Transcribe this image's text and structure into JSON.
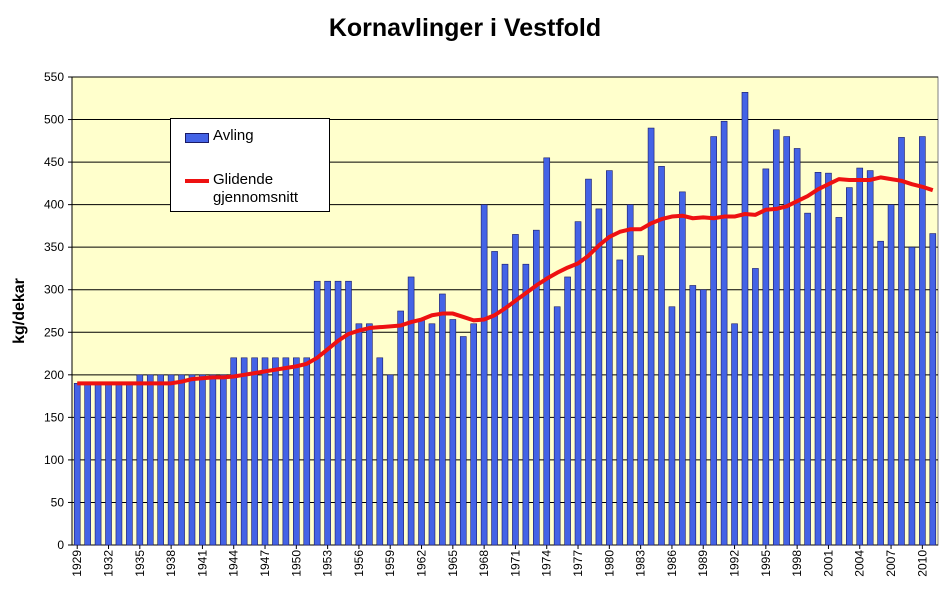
{
  "chart_data": {
    "type": "bar",
    "title": "Kornavlinger i Vestfold",
    "y_label": "kg/dekar",
    "categories": [
      "1929",
      null,
      null,
      "1932",
      null,
      null,
      "1935",
      null,
      null,
      "1938",
      null,
      null,
      "1941",
      null,
      null,
      "1944",
      null,
      null,
      "1947",
      null,
      null,
      "1950",
      null,
      null,
      "1953",
      null,
      null,
      "1956",
      null,
      null,
      "1959",
      null,
      null,
      "1962",
      null,
      null,
      "1965",
      null,
      null,
      "1968",
      null,
      null,
      "1971",
      null,
      null,
      "1974",
      null,
      null,
      "1977",
      null,
      null,
      "1980",
      null,
      null,
      "1983",
      null,
      null,
      "1986",
      null,
      null,
      "1989",
      null,
      null,
      "1992",
      null,
      null,
      "1995",
      null,
      null,
      "1998",
      null,
      null,
      "2001",
      null,
      null,
      "2004",
      null,
      null,
      "2007",
      null,
      null,
      "2010",
      null
    ],
    "series": [
      {
        "name": "Avling",
        "type": "bar",
        "color": "#4463e6",
        "values": [
          190,
          190,
          190,
          190,
          190,
          190,
          200,
          200,
          200,
          200,
          200,
          200,
          200,
          200,
          200,
          220,
          220,
          220,
          220,
          220,
          220,
          220,
          220,
          310,
          310,
          310,
          310,
          260,
          260,
          220,
          200,
          275,
          315,
          265,
          260,
          295,
          265,
          245,
          260,
          400,
          345,
          330,
          365,
          330,
          370,
          455,
          280,
          315,
          380,
          430,
          395,
          440,
          335,
          400,
          340,
          490,
          445,
          280,
          415,
          305,
          300,
          480,
          498,
          260,
          532,
          325,
          442,
          488,
          480,
          466,
          390,
          438,
          437,
          385,
          420,
          443,
          440,
          357,
          400,
          479,
          350,
          480,
          366
        ]
      },
      {
        "name": "Glidende gjennomsnitt",
        "type": "line",
        "color": "#ee1111",
        "values": [
          190,
          190,
          190,
          190,
          190,
          190,
          190,
          190,
          190,
          190,
          192,
          195,
          196,
          197,
          197,
          198,
          200,
          202,
          204,
          206,
          208,
          210,
          213,
          220,
          230,
          240,
          248,
          252,
          255,
          256,
          257,
          258,
          262,
          265,
          270,
          272,
          272,
          268,
          264,
          265,
          270,
          278,
          287,
          296,
          305,
          313,
          320,
          326,
          331,
          340,
          352,
          362,
          368,
          371,
          371,
          378,
          383,
          386,
          387,
          384,
          385,
          384,
          386,
          386,
          389,
          388,
          394,
          395,
          398,
          404,
          410,
          418,
          424,
          430,
          429,
          429,
          429,
          432,
          430,
          428,
          424,
          421,
          417
        ]
      }
    ],
    "ylim": [
      0,
      550
    ],
    "yticks": [
      0,
      50,
      100,
      150,
      200,
      250,
      300,
      350,
      400,
      450,
      500,
      550
    ],
    "grid": true,
    "plot_background": "#ffffcc"
  }
}
